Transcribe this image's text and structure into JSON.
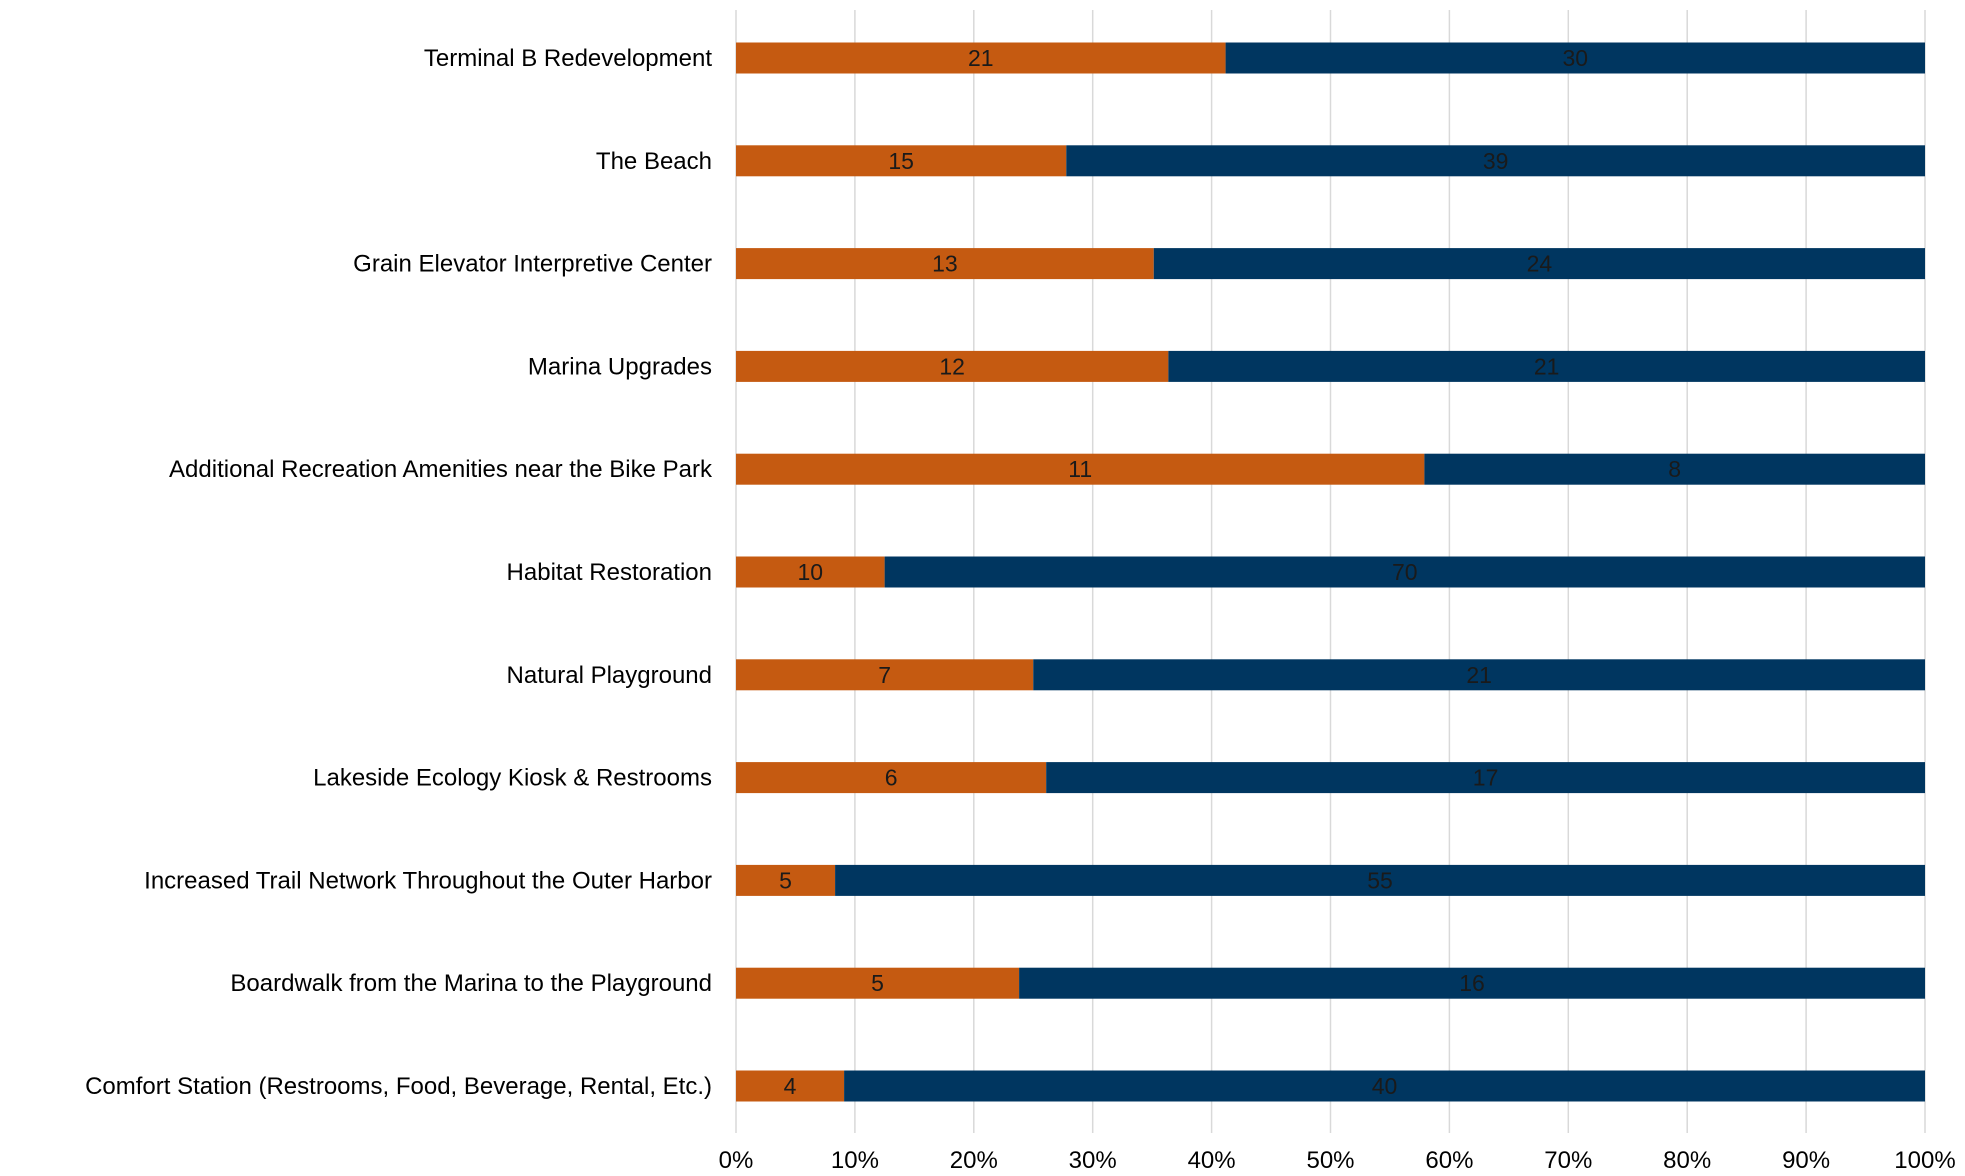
{
  "chart_data": {
    "type": "bar",
    "orientation": "horizontal",
    "stacking": "percent",
    "categories": [
      "Terminal B Redevelopment",
      "The Beach",
      "Grain Elevator Interpretive Center",
      "Marina Upgrades",
      "Additional Recreation Amenities near the Bike Park",
      "Habitat Restoration",
      "Natural Playground",
      "Lakeside Ecology Kiosk & Restrooms",
      "Increased Trail Network Throughout the Outer Harbor",
      "Boardwalk from the Marina to the Playground",
      "Comfort Station (Restrooms, Food, Beverage, Rental, Etc.)"
    ],
    "series": [
      {
        "color": "#c55a11",
        "values": [
          21,
          15,
          13,
          12,
          11,
          10,
          7,
          6,
          5,
          5,
          4
        ]
      },
      {
        "color": "#003660",
        "values": [
          30,
          39,
          24,
          21,
          8,
          70,
          21,
          17,
          55,
          16,
          40
        ]
      }
    ],
    "xticks": [
      "0%",
      "10%",
      "20%",
      "30%",
      "40%",
      "50%",
      "60%",
      "70%",
      "80%",
      "90%",
      "100%"
    ],
    "xlim": [
      0,
      100
    ],
    "grid": "vertical",
    "legend": "none",
    "title": "",
    "xlabel": "",
    "ylabel": ""
  }
}
